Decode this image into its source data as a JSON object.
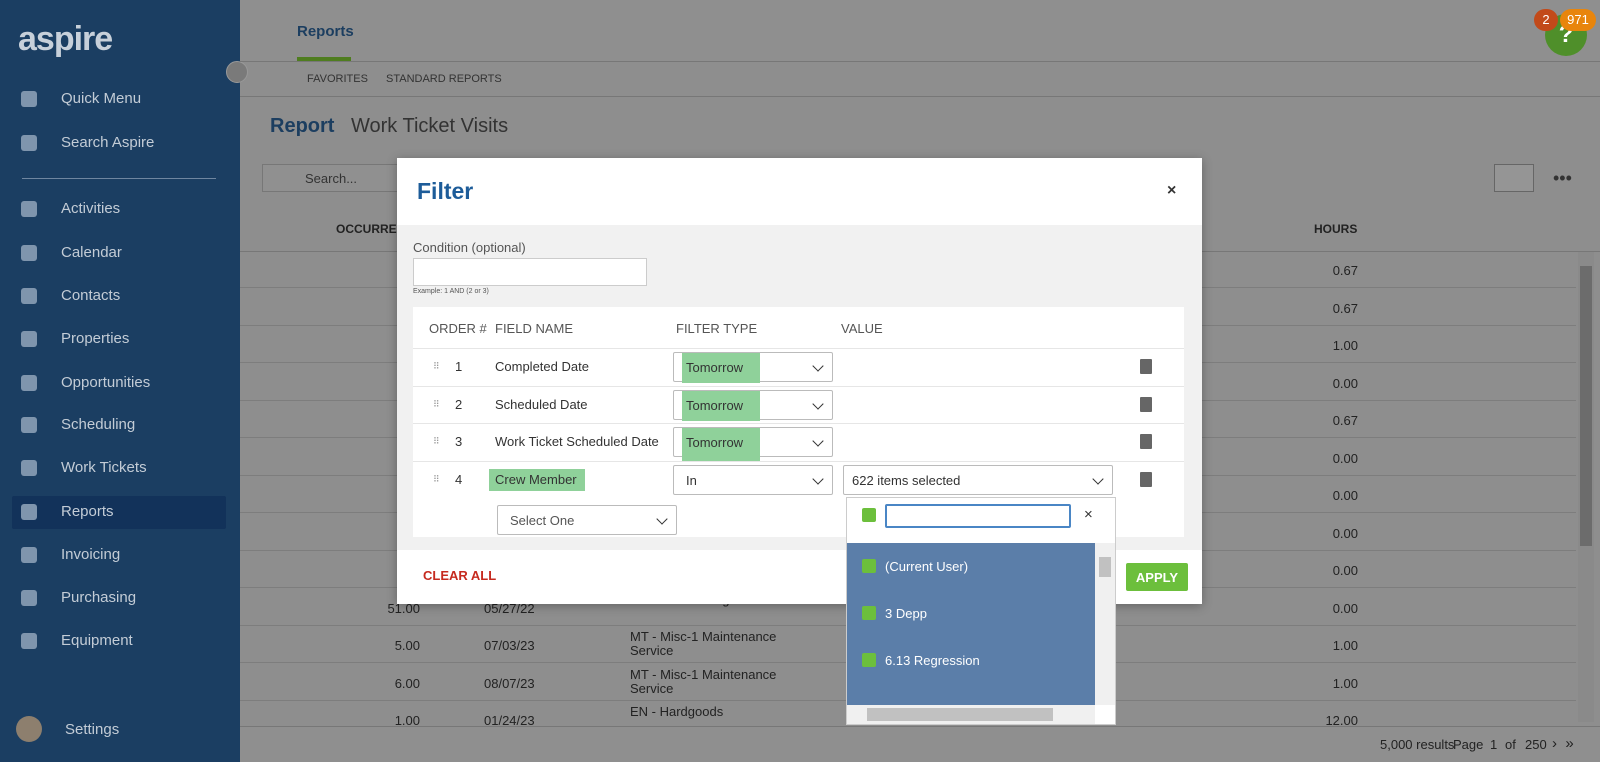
{
  "brand": "aspire",
  "nav": [
    "Quick Menu",
    "Search Aspire",
    "Activities",
    "Calendar",
    "Contacts",
    "Properties",
    "Opportunities",
    "Scheduling",
    "Work Tickets",
    "Reports",
    "Invoicing",
    "Purchasing",
    "Equipment"
  ],
  "active_nav": "Reports",
  "settings": "Settings",
  "badges": {
    "alerts": "2",
    "notifications": "971",
    "help": "?"
  },
  "header": {
    "tab": "Reports",
    "subtabs": [
      "FAVORITES",
      "STANDARD REPORTS"
    ]
  },
  "report": {
    "label": "Report",
    "name": "Work Ticket Visits",
    "search_placeholder": "Search..."
  },
  "table": {
    "columns": {
      "occurrence": "OCCURRE",
      "hours": "HOURS"
    },
    "rows": [
      {
        "hours": "0.67"
      },
      {
        "hours": "0.67"
      },
      {
        "hours": "1.00"
      },
      {
        "hours": "0.00"
      },
      {
        "hours": "0.67"
      },
      {
        "hours": "0.00"
      },
      {
        "hours": "0.00"
      },
      {
        "hours": "0.00"
      },
      {
        "hours": "0.00"
      },
      {
        "occurrence": "51.00",
        "date": "05/27/22",
        "service": "MT - Fall Mowing Service",
        "hours": "0.00"
      },
      {
        "occurrence": "5.00",
        "date": "07/03/23",
        "service": "MT - Misc-1 Maintenance Service",
        "hours": "1.00"
      },
      {
        "occurrence": "6.00",
        "date": "08/07/23",
        "service": "MT - Misc-1 Maintenance Service",
        "hours": "1.00"
      },
      {
        "occurrence": "1.00",
        "date": "01/24/23",
        "service": "EN - Hardgoods",
        "hours": "12.00"
      }
    ],
    "footer": {
      "results": "5,000 results",
      "page_label": "Page",
      "page": "1",
      "of": "of",
      "pages": "250"
    }
  },
  "filter": {
    "title": "Filter",
    "close": "×",
    "condition_label": "Condition (optional)",
    "condition_hint": "Example: 1 AND (2 or 3)",
    "headers": [
      "ORDER #",
      "FIELD NAME",
      "FILTER TYPE",
      "VALUE"
    ],
    "rows": [
      {
        "order": "1",
        "field": "Completed Date",
        "type": "Tomorrow"
      },
      {
        "order": "2",
        "field": "Scheduled Date",
        "type": "Tomorrow"
      },
      {
        "order": "3",
        "field": "Work Ticket Scheduled Date",
        "type": "Tomorrow"
      },
      {
        "order": "4",
        "field": "Crew Member",
        "type": "In",
        "value": "622 items selected"
      }
    ],
    "new_field": "Select One",
    "clear_all": "CLEAR ALL",
    "apply": "APPLY",
    "dropdown": {
      "clear": "×",
      "items": [
        "(Current User)",
        "3 Depp",
        "6.13 Regression"
      ]
    }
  }
}
